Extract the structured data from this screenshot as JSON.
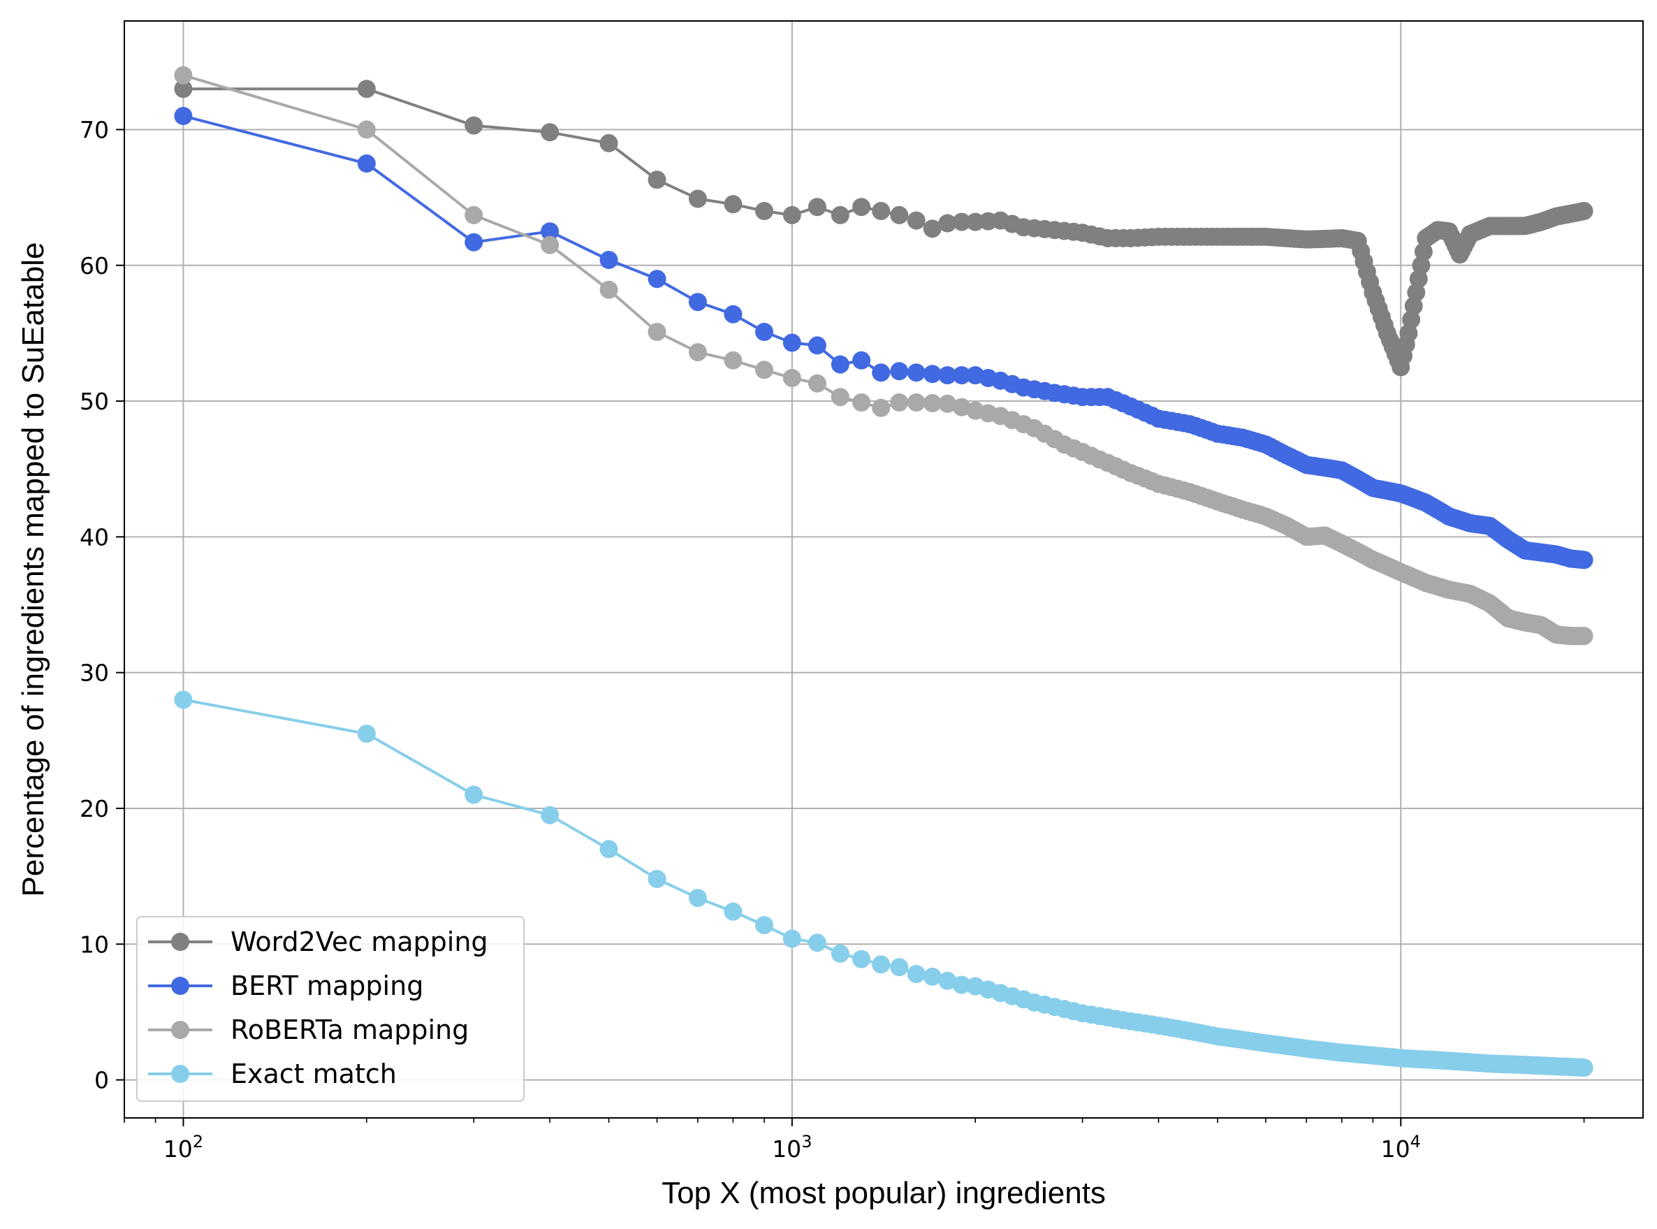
{
  "chart_data": {
    "type": "line",
    "xlabel": "Top X (most popular) ingredients",
    "ylabel": "Percentage of ingredients mapped to SuEatable",
    "xscale": "log",
    "xlim": [
      80,
      25000
    ],
    "ylim": [
      -2.8,
      78
    ],
    "grid": true,
    "legend_position": "lower-left",
    "x_ticks": [
      {
        "value": 100,
        "base": "10",
        "exp": "2"
      },
      {
        "value": 1000,
        "base": "10",
        "exp": "3"
      },
      {
        "value": 10000,
        "base": "10",
        "exp": "4"
      }
    ],
    "y_ticks": [
      0,
      10,
      20,
      30,
      40,
      50,
      60,
      70
    ],
    "series": [
      {
        "name": "Word2Vec mapping",
        "color": "#808080",
        "points": [
          [
            100,
            73
          ],
          [
            200,
            73
          ],
          [
            300,
            70.3
          ],
          [
            400,
            69.8
          ],
          [
            500,
            69
          ],
          [
            600,
            66.3
          ],
          [
            700,
            64.9
          ],
          [
            800,
            64.5
          ],
          [
            900,
            64
          ],
          [
            1000,
            63.7
          ],
          [
            1100,
            64.3
          ],
          [
            1200,
            63.7
          ],
          [
            1300,
            64.3
          ],
          [
            1400,
            64
          ],
          [
            1500,
            63.7
          ],
          [
            1600,
            63.3
          ],
          [
            1700,
            62.7
          ],
          [
            1800,
            63.1
          ],
          [
            1900,
            63.2
          ],
          [
            2000,
            63.2
          ],
          [
            2200,
            63.3
          ],
          [
            2400,
            62.8
          ],
          [
            2700,
            62.6
          ],
          [
            3000,
            62.4
          ],
          [
            3300,
            62
          ],
          [
            3600,
            62
          ],
          [
            4000,
            62.1
          ],
          [
            4500,
            62.1
          ],
          [
            5000,
            62.1
          ],
          [
            6000,
            62.1
          ],
          [
            7000,
            61.9
          ],
          [
            8000,
            62
          ],
          [
            8500,
            61.8
          ],
          [
            9000,
            58
          ],
          [
            9500,
            55
          ],
          [
            10000,
            52.5
          ],
          [
            10300,
            55
          ],
          [
            10700,
            59
          ],
          [
            11000,
            62
          ],
          [
            11500,
            62.6
          ],
          [
            12000,
            62.5
          ],
          [
            12500,
            60.8
          ],
          [
            13000,
            62.3
          ],
          [
            14000,
            62.9
          ],
          [
            15000,
            62.9
          ],
          [
            16000,
            62.9
          ],
          [
            17000,
            63.2
          ],
          [
            18000,
            63.6
          ],
          [
            19000,
            63.8
          ],
          [
            20000,
            64
          ]
        ]
      },
      {
        "name": "BERT mapping",
        "color": "#4169e1",
        "points": [
          [
            100,
            71
          ],
          [
            200,
            67.5
          ],
          [
            300,
            61.7
          ],
          [
            400,
            62.5
          ],
          [
            500,
            60.4
          ],
          [
            600,
            59
          ],
          [
            700,
            57.3
          ],
          [
            800,
            56.4
          ],
          [
            900,
            55.1
          ],
          [
            1000,
            54.3
          ],
          [
            1100,
            54.1
          ],
          [
            1200,
            52.7
          ],
          [
            1300,
            53
          ],
          [
            1400,
            52.1
          ],
          [
            1500,
            52.2
          ],
          [
            1600,
            52.1
          ],
          [
            1800,
            51.9
          ],
          [
            2000,
            51.9
          ],
          [
            2200,
            51.5
          ],
          [
            2400,
            51
          ],
          [
            2700,
            50.6
          ],
          [
            3000,
            50.3
          ],
          [
            3300,
            50.3
          ],
          [
            3600,
            49.6
          ],
          [
            4000,
            48.7
          ],
          [
            4500,
            48.3
          ],
          [
            5000,
            47.6
          ],
          [
            5500,
            47.3
          ],
          [
            6000,
            46.8
          ],
          [
            6500,
            46
          ],
          [
            7000,
            45.3
          ],
          [
            8000,
            44.9
          ],
          [
            9000,
            43.6
          ],
          [
            10000,
            43.2
          ],
          [
            11000,
            42.5
          ],
          [
            12000,
            41.5
          ],
          [
            13000,
            41
          ],
          [
            14000,
            40.8
          ],
          [
            15000,
            39.8
          ],
          [
            16000,
            39
          ],
          [
            18000,
            38.7
          ],
          [
            19000,
            38.4
          ],
          [
            20000,
            38.3
          ]
        ]
      },
      {
        "name": "RoBERTa mapping",
        "color": "#a9a9a9",
        "points": [
          [
            100,
            74
          ],
          [
            200,
            70
          ],
          [
            300,
            63.7
          ],
          [
            400,
            61.5
          ],
          [
            500,
            58.2
          ],
          [
            600,
            55.1
          ],
          [
            700,
            53.6
          ],
          [
            800,
            53
          ],
          [
            900,
            52.3
          ],
          [
            1000,
            51.7
          ],
          [
            1100,
            51.3
          ],
          [
            1200,
            50.3
          ],
          [
            1300,
            49.9
          ],
          [
            1400,
            49.5
          ],
          [
            1500,
            49.9
          ],
          [
            1600,
            49.9
          ],
          [
            1800,
            49.8
          ],
          [
            2000,
            49.3
          ],
          [
            2200,
            48.9
          ],
          [
            2500,
            48
          ],
          [
            2800,
            46.8
          ],
          [
            3200,
            45.7
          ],
          [
            3600,
            44.7
          ],
          [
            4000,
            43.9
          ],
          [
            4500,
            43.3
          ],
          [
            5000,
            42.6
          ],
          [
            5500,
            42
          ],
          [
            6000,
            41.5
          ],
          [
            6500,
            40.8
          ],
          [
            7000,
            40
          ],
          [
            7500,
            40.1
          ],
          [
            8000,
            39.5
          ],
          [
            9000,
            38.3
          ],
          [
            10000,
            37.4
          ],
          [
            11000,
            36.6
          ],
          [
            12000,
            36.1
          ],
          [
            13000,
            35.8
          ],
          [
            14000,
            35.1
          ],
          [
            15000,
            34
          ],
          [
            16000,
            33.7
          ],
          [
            17000,
            33.5
          ],
          [
            18000,
            32.8
          ],
          [
            19000,
            32.7
          ],
          [
            20000,
            32.7
          ]
        ]
      },
      {
        "name": "Exact match",
        "color": "#87ceeb",
        "points": [
          [
            100,
            28
          ],
          [
            200,
            25.5
          ],
          [
            300,
            21
          ],
          [
            400,
            19.5
          ],
          [
            500,
            17
          ],
          [
            600,
            14.8
          ],
          [
            700,
            13.4
          ],
          [
            800,
            12.4
          ],
          [
            900,
            11.4
          ],
          [
            1000,
            10.4
          ],
          [
            1100,
            10.1
          ],
          [
            1200,
            9.3
          ],
          [
            1300,
            8.9
          ],
          [
            1400,
            8.5
          ],
          [
            1500,
            8.3
          ],
          [
            1600,
            7.8
          ],
          [
            1700,
            7.6
          ],
          [
            1800,
            7.3
          ],
          [
            1900,
            7
          ],
          [
            2000,
            6.9
          ],
          [
            2200,
            6.4
          ],
          [
            2500,
            5.7
          ],
          [
            3000,
            4.9
          ],
          [
            3500,
            4.4
          ],
          [
            4000,
            4
          ],
          [
            4500,
            3.6
          ],
          [
            5000,
            3.2
          ],
          [
            6000,
            2.7
          ],
          [
            7000,
            2.3
          ],
          [
            8000,
            2
          ],
          [
            9000,
            1.8
          ],
          [
            10000,
            1.6
          ],
          [
            12000,
            1.4
          ],
          [
            14000,
            1.2
          ],
          [
            16000,
            1.1
          ],
          [
            18000,
            1
          ],
          [
            20000,
            0.9
          ]
        ]
      }
    ]
  }
}
